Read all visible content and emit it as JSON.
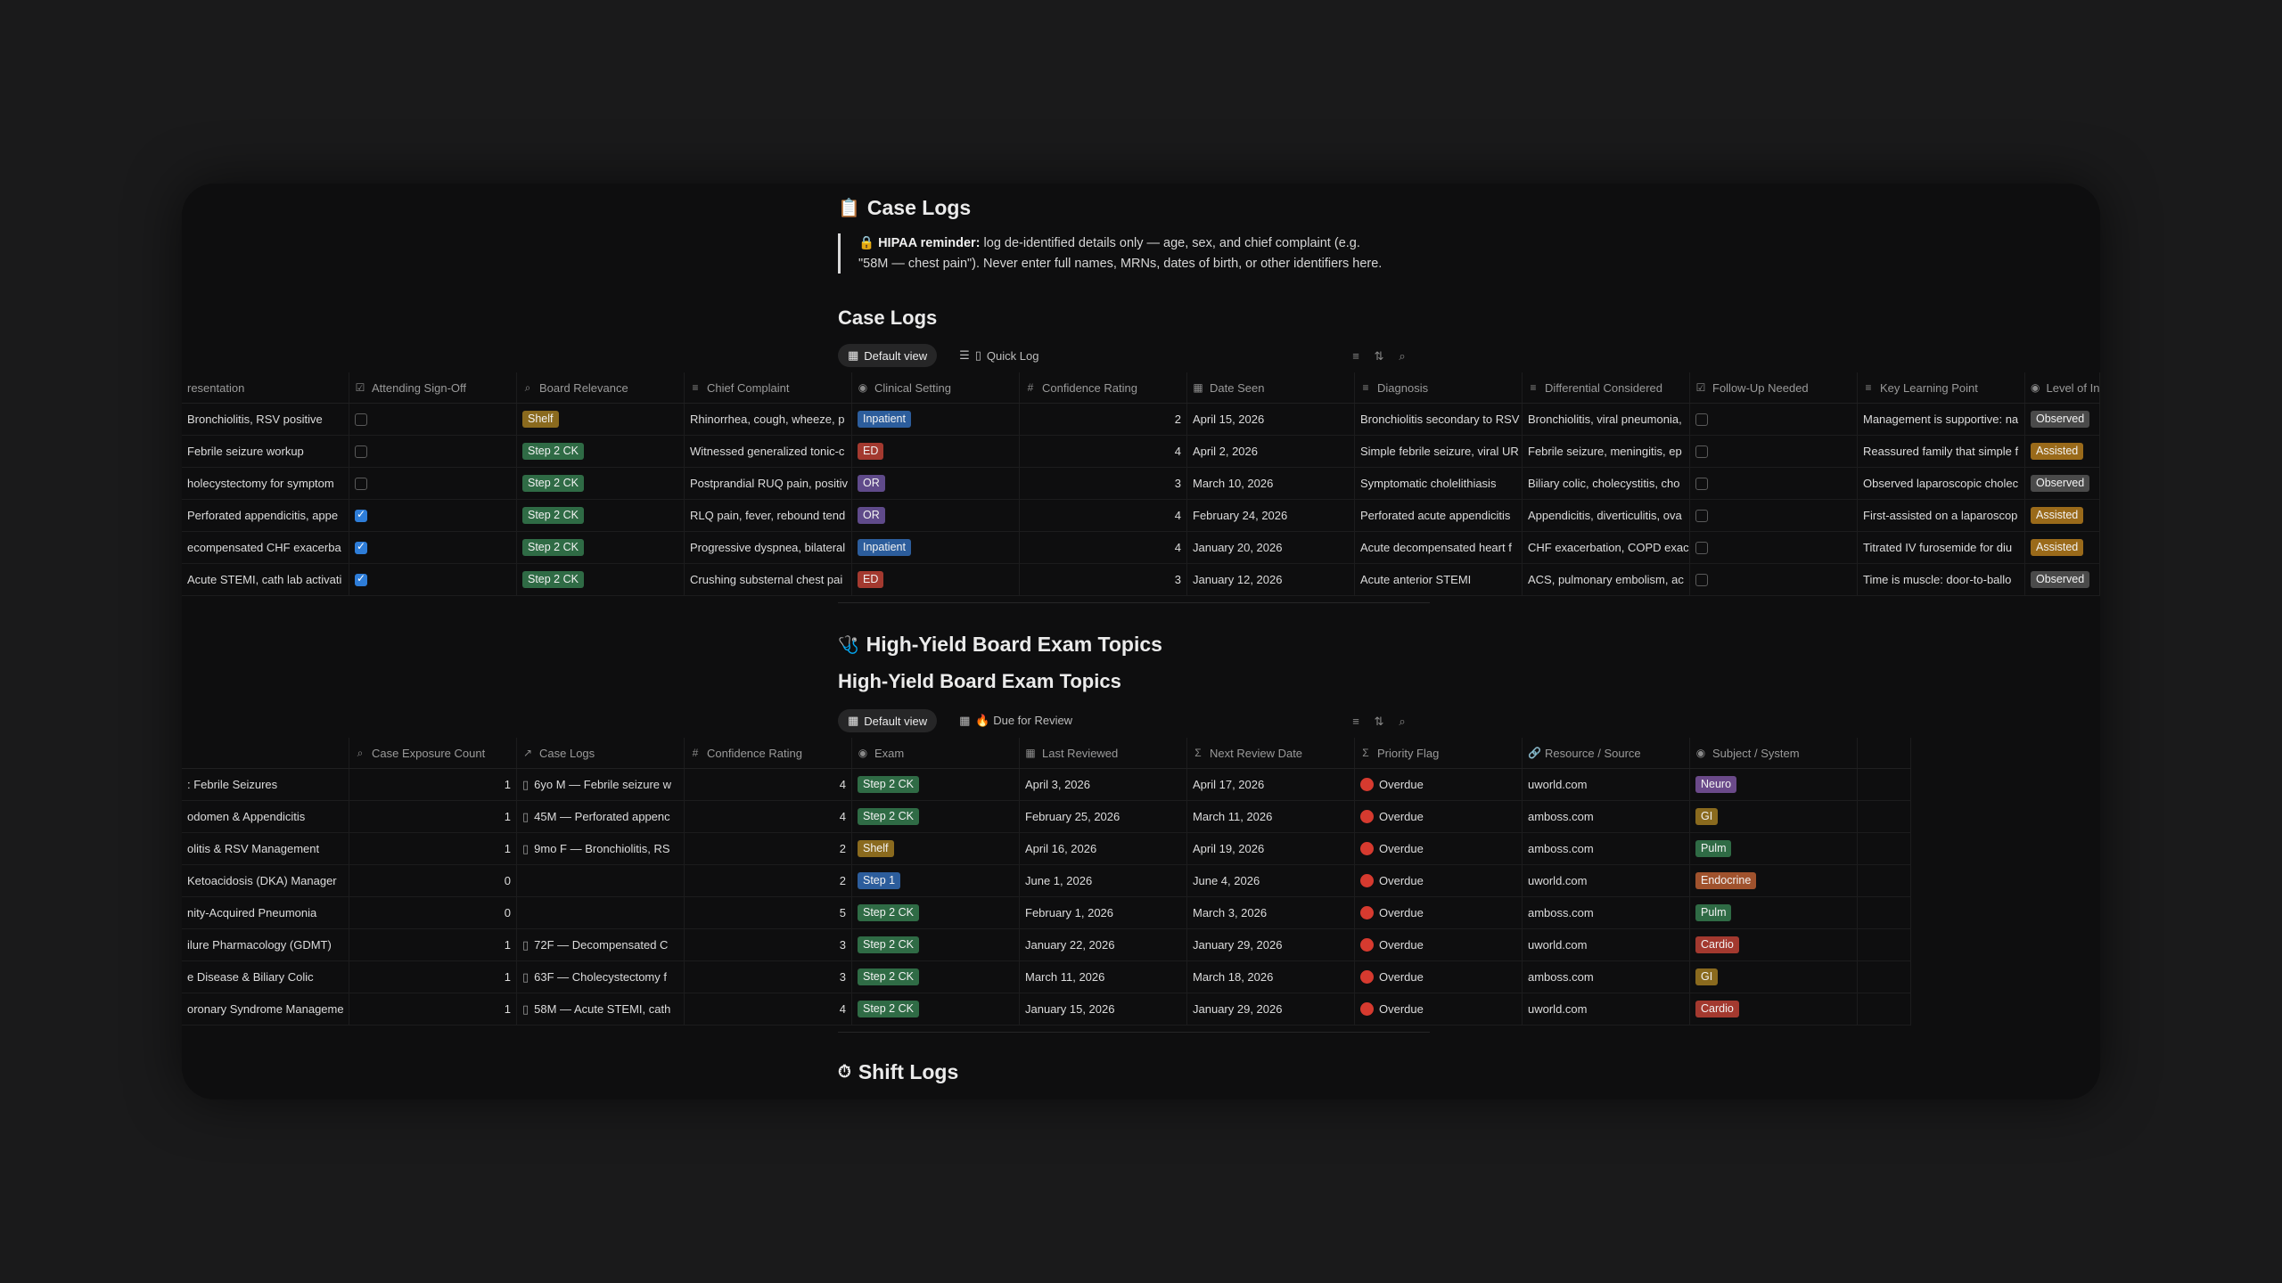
{
  "caseLogs": {
    "page_title": "Case Logs",
    "page_icon": "clipboard-icon",
    "callout_bold": "🔒 HIPAA reminder:",
    "callout_text": " log de-identified details only — age, sex, and chief complaint (e.g. \"58M — chest pain\"). Never enter full names, MRNs, dates of birth, or other identifiers here.",
    "db_title": "Case Logs",
    "views": [
      "Default view",
      "Quick Log"
    ],
    "columns": [
      {
        "label": "resentation",
        "icon": ""
      },
      {
        "label": "Attending Sign-Off",
        "icon": "☑"
      },
      {
        "label": "Board Relevance",
        "icon": "⌕"
      },
      {
        "label": "Chief Complaint",
        "icon": "≡"
      },
      {
        "label": "Clinical Setting",
        "icon": "◉"
      },
      {
        "label": "Confidence Rating",
        "icon": "#"
      },
      {
        "label": "Date Seen",
        "icon": "▦"
      },
      {
        "label": "Diagnosis",
        "icon": "≡"
      },
      {
        "label": "Differential Considered",
        "icon": "≡"
      },
      {
        "label": "Follow-Up Needed",
        "icon": "☑"
      },
      {
        "label": "Key Learning Point",
        "icon": "≡"
      },
      {
        "label": "Level of In",
        "icon": "◉"
      }
    ],
    "rows": [
      {
        "presentation": "Bronchiolitis, RSV positive",
        "signoff": false,
        "board": "Shelf",
        "complaint": "Rhinorrhea, cough, wheeze, p",
        "setting": "Inpatient",
        "confidence": "2",
        "date": "April 15, 2026",
        "diagnosis": "Bronchiolitis secondary to RSV",
        "differential": "Bronchiolitis, viral pneumonia,",
        "followup": false,
        "learning": "Management is supportive: na",
        "level": "Observed"
      },
      {
        "presentation": "Febrile seizure workup",
        "signoff": false,
        "board": "Step 2 CK",
        "complaint": "Witnessed generalized tonic-c",
        "setting": "ED",
        "confidence": "4",
        "date": "April 2, 2026",
        "diagnosis": "Simple febrile seizure, viral UR",
        "differential": "Febrile seizure, meningitis, ep",
        "followup": false,
        "learning": "Reassured family that simple f",
        "level": "Assisted"
      },
      {
        "presentation": "holecystectomy for symptom",
        "signoff": false,
        "board": "Step 2 CK",
        "complaint": "Postprandial RUQ pain, positiv",
        "setting": "OR",
        "confidence": "3",
        "date": "March 10, 2026",
        "diagnosis": "Symptomatic cholelithiasis",
        "differential": "Biliary colic, cholecystitis, cho",
        "followup": false,
        "learning": "Observed laparoscopic cholec",
        "level": "Observed"
      },
      {
        "presentation": "Perforated appendicitis, appe",
        "signoff": true,
        "board": "Step 2 CK",
        "complaint": "RLQ pain, fever, rebound tend",
        "setting": "OR",
        "confidence": "4",
        "date": "February 24, 2026",
        "diagnosis": "Perforated acute appendicitis",
        "differential": "Appendicitis, diverticulitis, ova",
        "followup": false,
        "learning": "First-assisted on a laparoscop",
        "level": "Assisted"
      },
      {
        "presentation": "ecompensated CHF exacerba",
        "signoff": true,
        "board": "Step 2 CK",
        "complaint": "Progressive dyspnea, bilateral",
        "setting": "Inpatient",
        "confidence": "4",
        "date": "January 20, 2026",
        "diagnosis": "Acute decompensated heart f",
        "differential": "CHF exacerbation, COPD exac",
        "followup": false,
        "learning": "Titrated IV furosemide for diu",
        "level": "Assisted"
      },
      {
        "presentation": "Acute STEMI, cath lab activati",
        "signoff": true,
        "board": "Step 2 CK",
        "complaint": "Crushing substernal chest pai",
        "setting": "ED",
        "confidence": "3",
        "date": "January 12, 2026",
        "diagnosis": "Acute anterior STEMI",
        "differential": "ACS, pulmonary embolism, ac",
        "followup": false,
        "learning": "Time is muscle: door-to-ballo",
        "level": "Observed"
      }
    ]
  },
  "topics": {
    "page_title": "High-Yield Board Exam Topics",
    "page_icon": "stethoscope-icon",
    "db_title": "High-Yield Board Exam Topics",
    "views": [
      "Default view",
      "🔥 Due for Review"
    ],
    "columns": [
      {
        "label": "",
        "icon": ""
      },
      {
        "label": "Case Exposure Count",
        "icon": "⌕"
      },
      {
        "label": "Case Logs",
        "icon": "↗"
      },
      {
        "label": "Confidence Rating",
        "icon": "#"
      },
      {
        "label": "Exam",
        "icon": "◉"
      },
      {
        "label": "Last Reviewed",
        "icon": "▦"
      },
      {
        "label": "Next Review Date",
        "icon": "Σ"
      },
      {
        "label": "Priority Flag",
        "icon": "Σ"
      },
      {
        "label": "Resource / Source",
        "icon": "🔗"
      },
      {
        "label": "Subject / System",
        "icon": "◉"
      },
      {
        "label": "",
        "icon": ""
      }
    ],
    "rows": [
      {
        "name": ": Febrile Seizures",
        "count": "1",
        "caselog": "6yo M — Febrile seizure w",
        "confidence": "4",
        "exam": "Step 2 CK",
        "last": "April 3, 2026",
        "next": "April 17, 2026",
        "flag": "Overdue",
        "resource": "uworld.com",
        "subject": "Neuro"
      },
      {
        "name": "odomen & Appendicitis",
        "count": "1",
        "caselog": "45M — Perforated appenc",
        "confidence": "4",
        "exam": "Step 2 CK",
        "last": "February 25, 2026",
        "next": "March 11, 2026",
        "flag": "Overdue",
        "resource": "amboss.com",
        "subject": "GI"
      },
      {
        "name": "olitis & RSV Management",
        "count": "1",
        "caselog": "9mo F — Bronchiolitis, RS",
        "confidence": "2",
        "exam": "Shelf",
        "last": "April 16, 2026",
        "next": "April 19, 2026",
        "flag": "Overdue",
        "resource": "amboss.com",
        "subject": "Pulm"
      },
      {
        "name": " Ketoacidosis (DKA) Manager",
        "count": "0",
        "caselog": "",
        "confidence": "2",
        "exam": "Step 1",
        "last": "June 1, 2026",
        "next": "June 4, 2026",
        "flag": "Overdue",
        "resource": "uworld.com",
        "subject": "Endocrine"
      },
      {
        "name": "nity-Acquired Pneumonia",
        "count": "0",
        "caselog": "",
        "confidence": "5",
        "exam": "Step 2 CK",
        "last": "February 1, 2026",
        "next": "March 3, 2026",
        "flag": "Overdue",
        "resource": "amboss.com",
        "subject": "Pulm"
      },
      {
        "name": "ilure Pharmacology (GDMT)",
        "count": "1",
        "caselog": "72F — Decompensated C",
        "confidence": "3",
        "exam": "Step 2 CK",
        "last": "January 22, 2026",
        "next": "January 29, 2026",
        "flag": "Overdue",
        "resource": "uworld.com",
        "subject": "Cardio"
      },
      {
        "name": "e Disease & Biliary Colic",
        "count": "1",
        "caselog": "63F — Cholecystectomy f",
        "confidence": "3",
        "exam": "Step 2 CK",
        "last": "March 11, 2026",
        "next": "March 18, 2026",
        "flag": "Overdue",
        "resource": "amboss.com",
        "subject": "GI"
      },
      {
        "name": "oronary Syndrome Manageme",
        "count": "1",
        "caselog": "58M — Acute STEMI, cath",
        "confidence": "4",
        "exam": "Step 2 CK",
        "last": "January 15, 2026",
        "next": "January 29, 2026",
        "flag": "Overdue",
        "resource": "uworld.com",
        "subject": "Cardio"
      }
    ]
  },
  "shiftLogs": {
    "page_title": "Shift Logs",
    "page_icon": "stopwatch-icon"
  },
  "colors": {
    "Shelf": "#8a6a1e",
    "Step 2 CK": "#2f6b45",
    "Step 1": "#2c5d9c",
    "Inpatient": "#2c5d9c",
    "ED": "#a3392f",
    "OR": "#5f4a8a",
    "Observed": "#4a4a4a",
    "Assisted": "#9a6a1a",
    "Neuro": "#6b4a8a",
    "GI": "#8a6a1e",
    "Pulm": "#2f6b45",
    "Endocrine": "#a0522d",
    "Cardio": "#a3392f"
  }
}
